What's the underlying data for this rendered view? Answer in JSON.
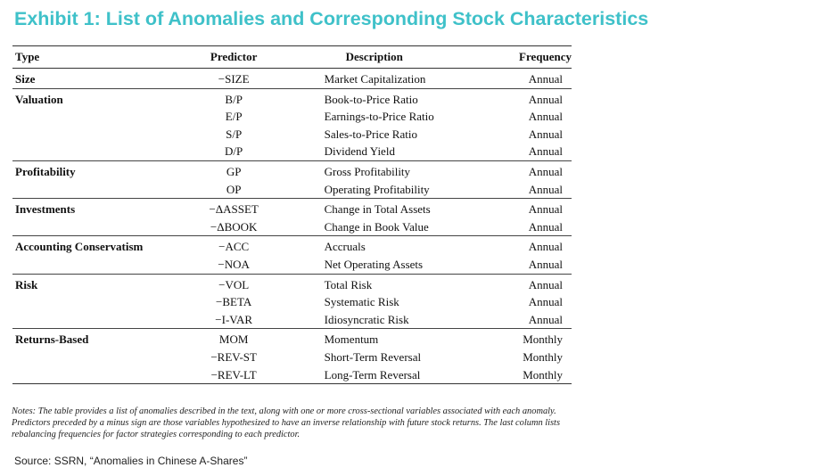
{
  "title": "Exhibit 1: List of Anomalies and Corresponding Stock Characteristics",
  "table": {
    "headers": [
      "Type",
      "Predictor",
      "Description",
      "Frequency"
    ],
    "groups": [
      {
        "type": "Size",
        "rows": [
          {
            "predictor": "−SIZE",
            "description": "Market Capitalization",
            "frequency": "Annual"
          }
        ]
      },
      {
        "type": "Valuation",
        "rows": [
          {
            "predictor": "B/P",
            "description": "Book-to-Price Ratio",
            "frequency": "Annual"
          },
          {
            "predictor": "E/P",
            "description": "Earnings-to-Price Ratio",
            "frequency": "Annual"
          },
          {
            "predictor": "S/P",
            "description": "Sales-to-Price Ratio",
            "frequency": "Annual"
          },
          {
            "predictor": "D/P",
            "description": "Dividend Yield",
            "frequency": "Annual"
          }
        ]
      },
      {
        "type": "Profitability",
        "rows": [
          {
            "predictor": "GP",
            "description": "Gross Profitability",
            "frequency": "Annual"
          },
          {
            "predictor": "OP",
            "description": "Operating Profitability",
            "frequency": "Annual"
          }
        ]
      },
      {
        "type": "Investments",
        "rows": [
          {
            "predictor": "−ΔASSET",
            "description": "Change in Total Assets",
            "frequency": "Annual"
          },
          {
            "predictor": "−ΔBOOK",
            "description": "Change in Book Value",
            "frequency": "Annual"
          }
        ]
      },
      {
        "type": "Accounting Conservatism",
        "rows": [
          {
            "predictor": "−ACC",
            "description": "Accruals",
            "frequency": "Annual"
          },
          {
            "predictor": "−NOA",
            "description": "Net Operating Assets",
            "frequency": "Annual"
          }
        ]
      },
      {
        "type": "Risk",
        "rows": [
          {
            "predictor": "−VOL",
            "description": "Total Risk",
            "frequency": "Annual"
          },
          {
            "predictor": "−BETA",
            "description": "Systematic Risk",
            "frequency": "Annual"
          },
          {
            "predictor": "−I-VAR",
            "description": "Idiosyncratic Risk",
            "frequency": "Annual"
          }
        ]
      },
      {
        "type": "Returns-Based",
        "rows": [
          {
            "predictor": "MOM",
            "description": "Momentum",
            "frequency": "Monthly"
          },
          {
            "predictor": "−REV-ST",
            "description": "Short-Term Reversal",
            "frequency": "Monthly"
          },
          {
            "predictor": "−REV-LT",
            "description": "Long-Term Reversal",
            "frequency": "Monthly"
          }
        ]
      }
    ]
  },
  "notes": {
    "line1": "Notes: The table provides a list of anomalies described in the text, along with one or more cross-sectional variables associated with each anomaly.",
    "line2": "Predictors preceded by a minus sign are those variables hypothesized to have an inverse relationship with future stock returns. The last column lists",
    "line3": "rebalancing frequencies for factor strategies corresponding to each predictor."
  },
  "source": "Source: SSRN, “Anomalies in Chinese A-Shares”"
}
